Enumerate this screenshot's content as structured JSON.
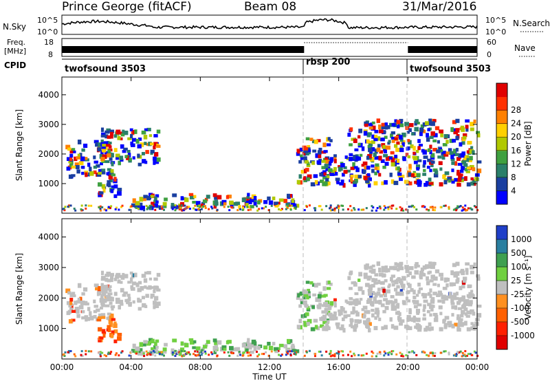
{
  "header": {
    "station": "Prince George (fitACF)",
    "beam": "Beam 08",
    "date": "31/Mar/2016"
  },
  "noise_panel": {
    "label": "N.Sky",
    "right_label": "N.Search",
    "y_ticks_left": [
      "10^5",
      "10^0"
    ],
    "y_ticks_right": [
      "10^5",
      "10^0"
    ]
  },
  "freq_panel": {
    "label_line1": "Freq.",
    "label_line2": "[MHz]",
    "y_ticks_left": [
      "18",
      "8"
    ],
    "y_ticks_right": [
      "60",
      "0"
    ],
    "right_label": "Nave"
  },
  "cpid_panel": {
    "label": "CPID",
    "segments": [
      {
        "label": "twofsound 3503",
        "start_h": 0,
        "end_h": 14
      },
      {
        "label": "rbsp 200",
        "start_h": 14,
        "end_h": 20
      },
      {
        "label": "twofsound 3503",
        "start_h": 20,
        "end_h": 24
      }
    ]
  },
  "range_axis": {
    "label": "Slant Range [km]",
    "ticks": [
      "1000",
      "2000",
      "3000",
      "4000"
    ]
  },
  "time_axis": {
    "label": "Time UT",
    "ticks": [
      "00:00",
      "04:00",
      "08:00",
      "12:00",
      "16:00",
      "20:00",
      "00:00"
    ]
  },
  "power_colorbar": {
    "label": "Power [dB]",
    "ticks": [
      "4",
      "8",
      "12",
      "16",
      "20",
      "24",
      "28"
    ],
    "colors": [
      "#0000ff",
      "#1a3fa0",
      "#2a7f6a",
      "#3fa040",
      "#b0c800",
      "#ffd000",
      "#ff8000",
      "#ff3000",
      "#e00000"
    ]
  },
  "velocity_colorbar": {
    "label": "Velocity [m s⁻¹]",
    "ticks": [
      "1000",
      "500",
      "100",
      "25",
      "-25",
      "-100",
      "-500",
      "-1000"
    ],
    "colors": [
      "#1f3fc8",
      "#2a7fa0",
      "#3fa050",
      "#70d040",
      "#bfbfbf",
      "#ff9020",
      "#ff6000",
      "#ff2000",
      "#e00000"
    ]
  },
  "chart_data": {
    "type": "heatmap",
    "x_unit": "hours UT",
    "xlim": [
      0,
      24
    ],
    "ylim": [
      0,
      4600
    ],
    "mode_changes_h": [
      14,
      20
    ],
    "power_clusters": [
      {
        "t0": 0.2,
        "t1": 2.8,
        "r0": 1300,
        "r1": 2500
      },
      {
        "t0": 2.2,
        "t1": 5.5,
        "r0": 1700,
        "r1": 2900
      },
      {
        "t0": 2.0,
        "t1": 3.2,
        "r0": 600,
        "r1": 1500
      },
      {
        "t0": 4.0,
        "t1": 13.5,
        "r0": 250,
        "r1": 700
      },
      {
        "t0": 13.5,
        "t1": 15.5,
        "r0": 1000,
        "r1": 2600
      },
      {
        "t0": 15.0,
        "t1": 24.0,
        "r0": 1000,
        "r1": 2000
      },
      {
        "t0": 16.5,
        "t1": 24.0,
        "r0": 1900,
        "r1": 3200
      }
    ]
  }
}
